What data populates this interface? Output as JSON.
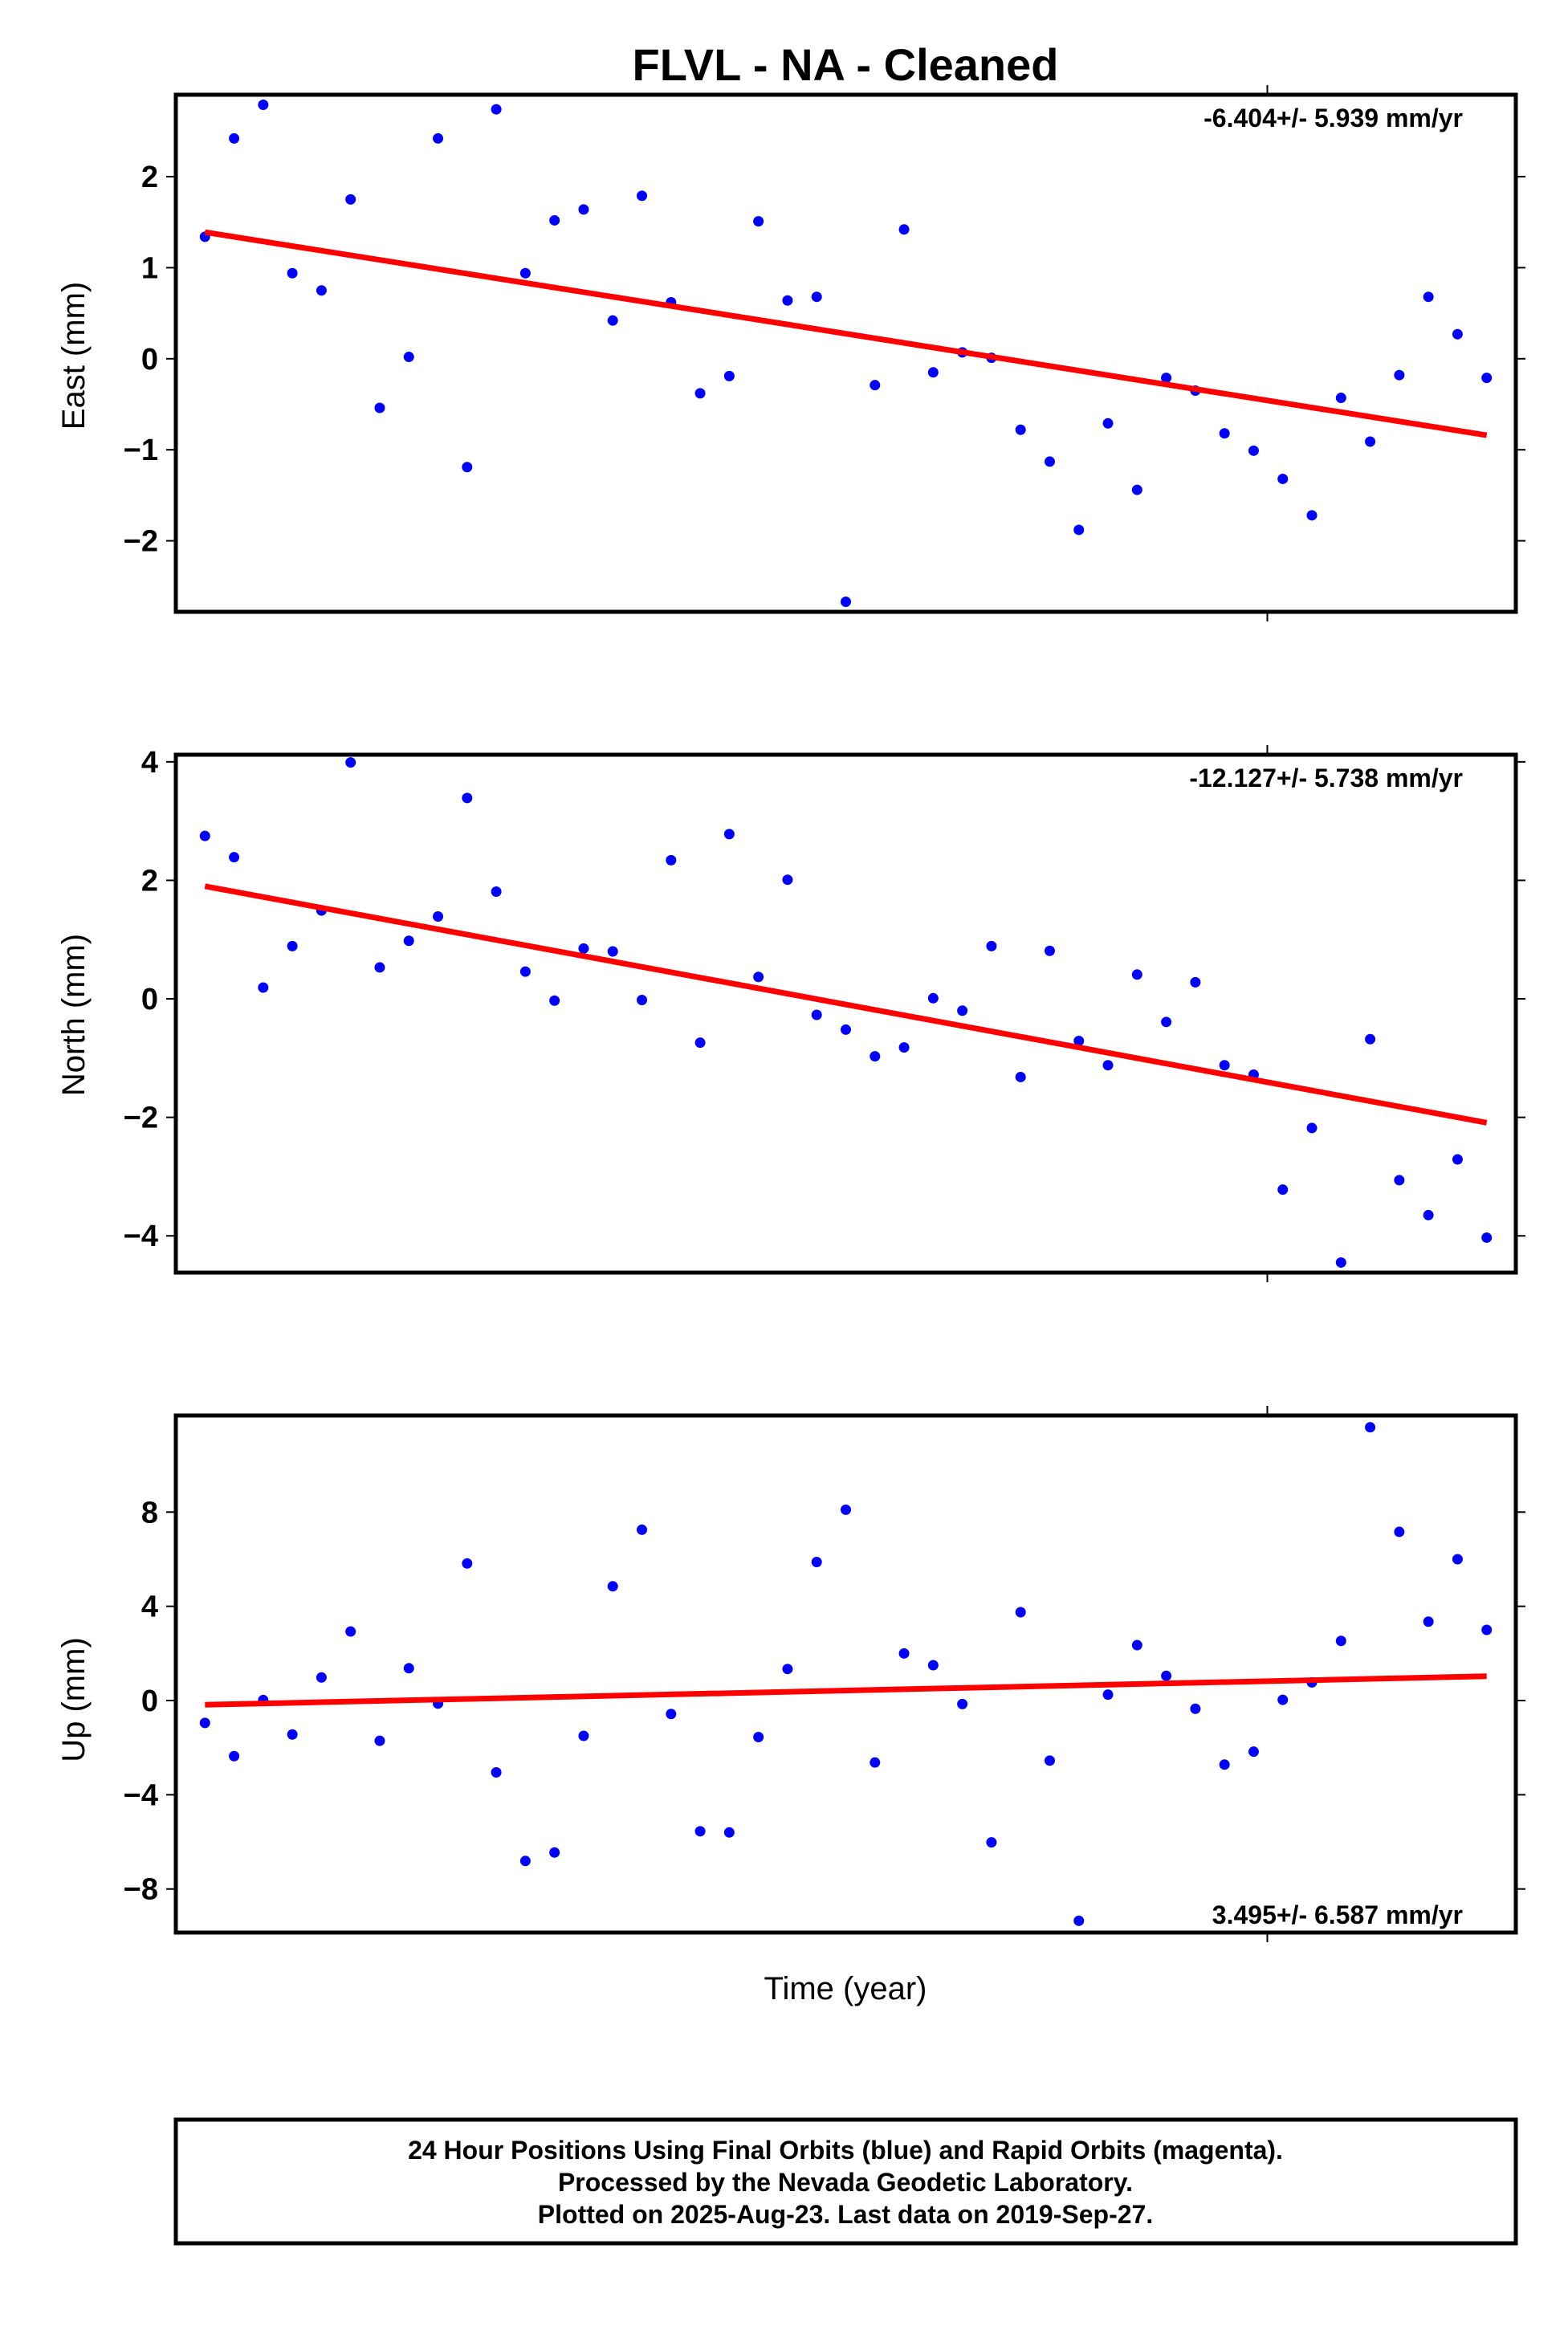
{
  "title": "FLVL  - NA - Cleaned",
  "xlabel": "Time (year)",
  "footer": {
    "lines": [
      "24 Hour Positions Using Final Orbits (blue) and Rapid Orbits (magenta).",
      "Processed by the Nevada Geodetic Laboratory.",
      "Plotted on 2025-Aug-23. Last data on 2019-Sep-27."
    ]
  },
  "colors": {
    "points": "#0000ff",
    "trend": "#ff0000",
    "frame": "#000000"
  },
  "chart_data": [
    {
      "type": "scatter",
      "ylabel": "East (mm)",
      "rate_label": "-6.404+/- 5.939 mm/yr",
      "rate_position": "top-right",
      "ylim": [
        -2.78,
        2.9
      ],
      "yticks": [
        -2,
        -1,
        0,
        1,
        2
      ],
      "yticklabels": [
        "−2",
        "−1",
        "0",
        "1",
        "2"
      ],
      "x_range": [
        0,
        46
      ],
      "x": [
        1,
        2,
        3,
        4,
        5,
        6,
        7,
        8,
        9,
        10,
        11,
        12,
        13,
        14,
        15,
        16,
        17,
        18,
        19,
        20,
        21,
        22,
        23,
        24,
        25,
        26,
        27,
        28,
        29,
        30,
        31,
        32,
        33,
        34,
        35,
        36,
        37,
        38,
        39,
        40,
        41,
        42,
        43,
        44,
        45
      ],
      "values": [
        1.34,
        2.42,
        2.79,
        0.94,
        0.75,
        1.75,
        -0.54,
        0.02,
        2.42,
        -1.19,
        2.74,
        0.94,
        1.52,
        1.64,
        0.42,
        1.79,
        0.62,
        -0.38,
        -0.19,
        1.51,
        0.64,
        0.68,
        -2.67,
        -0.29,
        1.42,
        -0.15,
        0.07,
        0.01,
        -0.78,
        -1.13,
        -1.88,
        -0.71,
        -1.44,
        -0.21,
        -0.35,
        -0.82,
        -1.01,
        -1.32,
        -1.72,
        -0.43,
        -0.91,
        -0.18,
        0.68,
        0.27,
        -0.21
      ],
      "trend": {
        "x": [
          1,
          45
        ],
        "y": [
          1.39,
          -0.84
        ]
      }
    },
    {
      "type": "scatter",
      "ylabel": "North (mm)",
      "rate_label": "-12.127+/- 5.738 mm/yr",
      "rate_position": "top-right",
      "ylim": [
        -4.62,
        4.12
      ],
      "yticks": [
        -4,
        -2,
        0,
        2,
        4
      ],
      "yticklabels": [
        "−4",
        "−2",
        "0",
        "2",
        "4"
      ],
      "x_range": [
        0,
        46
      ],
      "x": [
        1,
        2,
        3,
        4,
        5,
        6,
        7,
        8,
        9,
        10,
        11,
        12,
        13,
        14,
        15,
        16,
        17,
        18,
        19,
        20,
        21,
        22,
        23,
        24,
        25,
        26,
        27,
        28,
        29,
        30,
        31,
        32,
        33,
        34,
        35,
        36,
        37,
        38,
        39,
        40,
        41,
        42,
        43,
        44,
        45
      ],
      "values": [
        2.75,
        2.39,
        0.19,
        0.89,
        1.49,
        3.99,
        0.53,
        0.98,
        1.39,
        3.39,
        1.81,
        0.46,
        -0.03,
        0.85,
        0.8,
        -0.02,
        2.34,
        -0.74,
        2.78,
        0.37,
        2.01,
        -0.27,
        -0.52,
        -0.97,
        -0.82,
        0.01,
        -0.2,
        0.89,
        -1.32,
        0.81,
        -0.71,
        -1.12,
        0.41,
        -0.39,
        0.28,
        -1.12,
        -1.28,
        -3.22,
        -2.18,
        -4.45,
        -0.68,
        -3.06,
        -3.65,
        -2.71,
        -4.03
      ],
      "trend": {
        "x": [
          1,
          45
        ],
        "y": [
          1.9,
          -2.09
        ]
      }
    },
    {
      "type": "scatter",
      "ylabel": "Up (mm)",
      "rate_label": "3.495+/- 6.587 mm/yr",
      "rate_position": "bottom-right",
      "ylim": [
        -9.85,
        12.1
      ],
      "yticks": [
        -8,
        -4,
        0,
        4,
        8
      ],
      "yticklabels": [
        "−8",
        "−4",
        "0",
        "4",
        "8"
      ],
      "x_range": [
        0,
        46
      ],
      "x": [
        1,
        2,
        3,
        4,
        5,
        6,
        7,
        8,
        9,
        10,
        11,
        12,
        13,
        14,
        15,
        16,
        17,
        18,
        19,
        20,
        21,
        22,
        23,
        24,
        25,
        26,
        27,
        28,
        29,
        30,
        31,
        32,
        33,
        34,
        35,
        36,
        37,
        38,
        39,
        40,
        41,
        42,
        43,
        44,
        45
      ],
      "values": [
        -0.95,
        -2.36,
        0.02,
        -1.44,
        0.98,
        2.93,
        -1.71,
        1.37,
        -0.13,
        5.82,
        -3.05,
        -6.81,
        -6.45,
        -1.5,
        4.85,
        7.25,
        -0.57,
        -5.55,
        -5.6,
        -1.55,
        1.34,
        5.88,
        8.1,
        -2.63,
        2.0,
        1.5,
        -0.15,
        -6.02,
        3.75,
        -2.55,
        -9.35,
        0.25,
        2.35,
        1.05,
        -0.35,
        -2.72,
        -2.17,
        0.03,
        0.77,
        2.53,
        11.6,
        7.16,
        3.35,
        6.0,
        3.0
      ],
      "trend": {
        "x": [
          1,
          45
        ],
        "y": [
          -0.18,
          1.03
        ]
      }
    }
  ]
}
